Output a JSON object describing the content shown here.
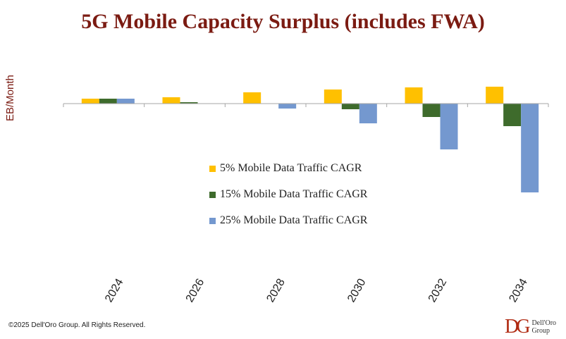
{
  "title": "5G Mobile Capacity Surplus (includes FWA)",
  "copyright": "©2025 Dell'Oro Group. All Rights Reserved.",
  "logo": {
    "mark": "DG",
    "line1": "Dell'Oro",
    "line2": "Group"
  },
  "colors": {
    "title": "#7b1b12",
    "axis": "#a6a6a6"
  },
  "chart_data": {
    "type": "bar",
    "title": "5G Mobile Capacity Surplus (includes FWA)",
    "xlabel": "",
    "ylabel": "EB/Month",
    "categories": [
      "2024",
      "2026",
      "2028",
      "2030",
      "2032",
      "2034"
    ],
    "series": [
      {
        "name": "5% Mobile Data Traffic CAGR",
        "color": "#ffc000",
        "values": [
          7,
          9,
          16,
          20,
          23,
          24
        ]
      },
      {
        "name": "15% Mobile Data Traffic CAGR",
        "color": "#3e6b2c",
        "values": [
          7,
          2,
          0,
          -8,
          -19,
          -32
        ]
      },
      {
        "name": "25% Mobile Data Traffic CAGR",
        "color": "#7498cf",
        "values": [
          7,
          0,
          -7,
          -28,
          -65,
          -126
        ]
      }
    ],
    "ylim": [
      -130,
      30
    ],
    "grid": false,
    "legend_position": "center"
  }
}
